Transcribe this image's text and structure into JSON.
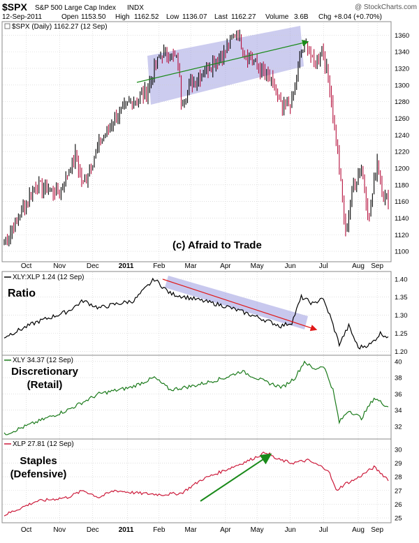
{
  "header": {
    "symbol": "$SPX",
    "name": "S&P 500 Large Cap Index",
    "exchange": "INDX",
    "watermark": "@ StockCharts.com",
    "date": "12-Sep-2011",
    "open_label": "Open",
    "open": "1153.50",
    "high_label": "High",
    "high": "1162.52",
    "low_label": "Low",
    "low": "1136.07",
    "last_label": "Last",
    "last": "1162.27",
    "volume_label": "Volume",
    "volume": "3.6B",
    "chg_label": "Chg",
    "chg": "+8.04 (+0.70%)"
  },
  "x_labels": [
    "Oct",
    "Nov",
    "Dec",
    "2011",
    "Feb",
    "Mar",
    "Apr",
    "May",
    "Jun",
    "Jul",
    "Aug",
    "Sep"
  ],
  "colors": {
    "up": "#000000",
    "down": "#b5103c",
    "ratio": "#000000",
    "xly": "#1a7a1a",
    "xlp": "#cc1a3a",
    "channel_fill": "#9a9ae0",
    "arrow_up": "#1a8a1a",
    "arrow_down": "#e01818",
    "grid": "#cccccc"
  },
  "chart_data": [
    {
      "type": "ohlc",
      "legend": "$SPX (Daily) 1162.27 (12 Sep)",
      "annotation": "(c) Afraid to Trade",
      "ylim": [
        1090,
        1372
      ],
      "y_ticks": [
        1100,
        1120,
        1140,
        1160,
        1180,
        1200,
        1220,
        1240,
        1260,
        1280,
        1300,
        1320,
        1340,
        1360
      ],
      "anchors": [
        [
          0,
          1110
        ],
        [
          20,
          1180
        ],
        [
          35,
          1170
        ],
        [
          45,
          1215
        ],
        [
          50,
          1180
        ],
        [
          60,
          1230
        ],
        [
          70,
          1260
        ],
        [
          80,
          1280
        ],
        [
          90,
          1290
        ],
        [
          95,
          1320
        ],
        [
          100,
          1340
        ],
        [
          110,
          1330
        ],
        [
          112,
          1280
        ],
        [
          118,
          1300
        ],
        [
          128,
          1320
        ],
        [
          140,
          1340
        ],
        [
          147,
          1365
        ],
        [
          152,
          1340
        ],
        [
          162,
          1320
        ],
        [
          170,
          1300
        ],
        [
          176,
          1270
        ],
        [
          182,
          1280
        ],
        [
          188,
          1340
        ],
        [
          192,
          1350
        ],
        [
          196,
          1320
        ],
        [
          201,
          1345
        ],
        [
          206,
          1300
        ],
        [
          212,
          1200
        ],
        [
          216,
          1120
        ],
        [
          221,
          1180
        ],
        [
          226,
          1200
        ],
        [
          231,
          1140
        ],
        [
          236,
          1210
        ],
        [
          240,
          1165
        ],
        [
          243,
          1162
        ]
      ]
    },
    {
      "type": "line",
      "legend": "XLY:XLP 1.24 (12 Sep)",
      "label": "Ratio",
      "ylim": [
        1.195,
        1.415
      ],
      "y_ticks": [
        1.2,
        1.25,
        1.3,
        1.35,
        1.4
      ],
      "anchors": [
        [
          0,
          1.24
        ],
        [
          20,
          1.28
        ],
        [
          40,
          1.31
        ],
        [
          50,
          1.34
        ],
        [
          60,
          1.32
        ],
        [
          70,
          1.33
        ],
        [
          82,
          1.34
        ],
        [
          95,
          1.4
        ],
        [
          105,
          1.36
        ],
        [
          120,
          1.345
        ],
        [
          140,
          1.325
        ],
        [
          160,
          1.295
        ],
        [
          175,
          1.27
        ],
        [
          182,
          1.28
        ],
        [
          188,
          1.35
        ],
        [
          196,
          1.33
        ],
        [
          201,
          1.35
        ],
        [
          206,
          1.3
        ],
        [
          212,
          1.22
        ],
        [
          218,
          1.27
        ],
        [
          224,
          1.21
        ],
        [
          232,
          1.22
        ],
        [
          238,
          1.25
        ],
        [
          243,
          1.24
        ]
      ]
    },
    {
      "type": "line",
      "legend": "XLY 34.37 (12 Sep)",
      "label_line1": "Discretionary",
      "label_line2": "(Retail)",
      "ylim": [
        30.7,
        40.5
      ],
      "y_ticks": [
        32,
        34,
        36,
        38,
        40
      ],
      "anchors": [
        [
          0,
          31.0
        ],
        [
          20,
          32.5
        ],
        [
          40,
          34.0
        ],
        [
          60,
          36.0
        ],
        [
          80,
          36.8
        ],
        [
          95,
          38.0
        ],
        [
          105,
          36.5
        ],
        [
          120,
          37.0
        ],
        [
          140,
          38.0
        ],
        [
          150,
          38.8
        ],
        [
          165,
          37.5
        ],
        [
          176,
          36.8
        ],
        [
          184,
          38.0
        ],
        [
          190,
          40.0
        ],
        [
          196,
          39.0
        ],
        [
          202,
          39.5
        ],
        [
          208,
          36.5
        ],
        [
          212,
          32.5
        ],
        [
          218,
          34.0
        ],
        [
          226,
          33.0
        ],
        [
          234,
          35.5
        ],
        [
          243,
          34.4
        ]
      ]
    },
    {
      "type": "line",
      "legend": "XLP 27.81 (12 Sep)",
      "label_line1": "Staples",
      "label_line2": "(Defensive)",
      "ylim": [
        24.8,
        30.6
      ],
      "y_ticks": [
        25,
        26,
        27,
        28,
        29,
        30
      ],
      "anchors": [
        [
          0,
          25.2
        ],
        [
          20,
          26.2
        ],
        [
          40,
          26.5
        ],
        [
          50,
          27.0
        ],
        [
          60,
          26.5
        ],
        [
          70,
          27.0
        ],
        [
          85,
          26.8
        ],
        [
          100,
          26.7
        ],
        [
          112,
          26.8
        ],
        [
          125,
          27.8
        ],
        [
          140,
          28.5
        ],
        [
          155,
          29.2
        ],
        [
          166,
          29.8
        ],
        [
          172,
          29.3
        ],
        [
          182,
          29.0
        ],
        [
          192,
          29.2
        ],
        [
          205,
          28.5
        ],
        [
          210,
          27.0
        ],
        [
          216,
          27.5
        ],
        [
          222,
          27.8
        ],
        [
          234,
          28.7
        ],
        [
          243,
          27.8
        ]
      ]
    }
  ]
}
